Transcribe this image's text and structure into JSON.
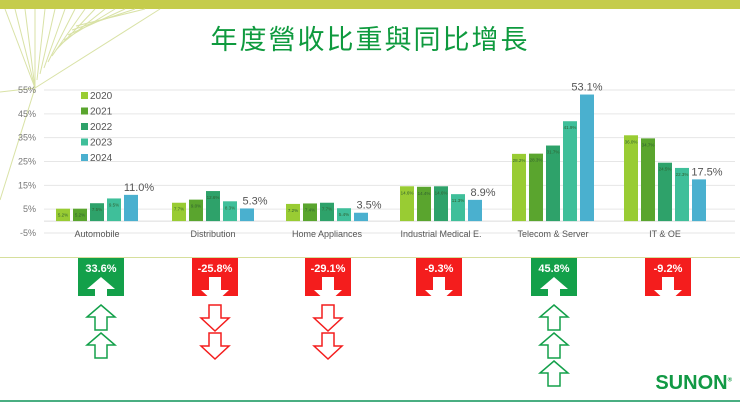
{
  "title": "年度營收比重與同比增長",
  "colors": {
    "banner": "#c5cc4c",
    "title": "#0e9a3e",
    "up": "#13a04a",
    "down": "#f41d1d",
    "series": [
      "#99cc33",
      "#5aa52e",
      "#2ea26a",
      "#3fbf9a",
      "#4ab0cf"
    ]
  },
  "chart_data": {
    "type": "bar",
    "title": "年度營收比重與同比增長",
    "xlabel": "",
    "ylabel": "",
    "ylim": [
      -5,
      55
    ],
    "yticks": [
      "55%",
      "45%",
      "35%",
      "25%",
      "15%",
      "5%",
      "-5%"
    ],
    "grid": true,
    "legend_position": "upper-left",
    "categories": [
      "Automobile",
      "Distribution",
      "Home Appliances",
      "Industrial Medical E.",
      "Telecom & Server",
      "IT & OE"
    ],
    "series": [
      {
        "name": "2020",
        "values": [
          5.2,
          7.7,
          7.2,
          14.6,
          28.2,
          36.0
        ]
      },
      {
        "name": "2021",
        "values": [
          5.2,
          9.0,
          7.4,
          14.4,
          28.3,
          34.7
        ]
      },
      {
        "name": "2022",
        "values": [
          7.5,
          12.6,
          7.7,
          14.6,
          31.7,
          24.5
        ]
      },
      {
        "name": "2023",
        "values": [
          9.5,
          8.3,
          5.4,
          11.3,
          41.9,
          22.3
        ]
      },
      {
        "name": "2024",
        "values": [
          11.0,
          5.3,
          3.5,
          8.9,
          53.1,
          17.5
        ]
      }
    ],
    "highlight_labels": [
      "11.0%",
      "5.3%",
      "3.5%",
      "8.9%",
      "53.1%",
      "17.5%"
    ],
    "yoy_growth": [
      {
        "category": "Automobile",
        "label": "33.6%",
        "direction": "up",
        "extra_arrows": 2
      },
      {
        "category": "Distribution",
        "label": "-25.8%",
        "direction": "down",
        "extra_arrows": 2
      },
      {
        "category": "Home Appliances",
        "label": "-29.1%",
        "direction": "down",
        "extra_arrows": 2
      },
      {
        "category": "Industrial Medical E.",
        "label": "-9.3%",
        "direction": "down",
        "extra_arrows": 0
      },
      {
        "category": "Telecom & Server",
        "label": "45.8%",
        "direction": "up",
        "extra_arrows": 3
      },
      {
        "category": "IT & OE",
        "label": "-9.2%",
        "direction": "down",
        "extra_arrows": 0
      }
    ]
  },
  "logo": "SUNON",
  "logo_mark": "®"
}
